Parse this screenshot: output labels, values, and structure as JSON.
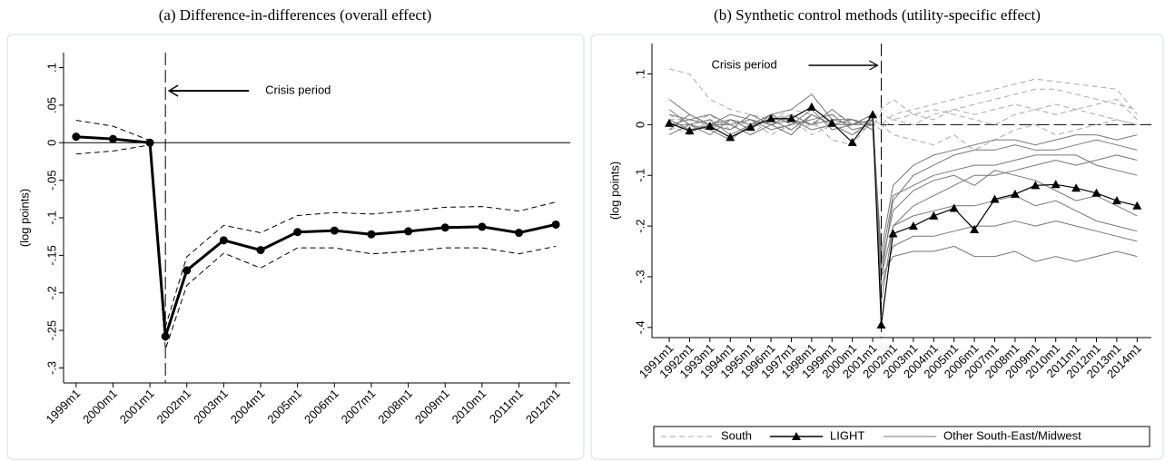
{
  "chart_data": [
    {
      "type": "line",
      "title": "(a) Difference-in-differences (overall effect)",
      "y_label": "(log points)",
      "annotation": "Crisis period",
      "crisis_x": 2001.42,
      "zero_line": "solid",
      "x": [
        1999,
        2000,
        2001,
        2001.42,
        2002,
        2003,
        2004,
        2005,
        2006,
        2007,
        2008,
        2009,
        2010,
        2011,
        2012
      ],
      "series": [
        {
          "color": "#000000",
          "style": "solid",
          "marker": "circle",
          "values": [
            0.008,
            0.005,
            0,
            -0.258,
            -0.17,
            -0.13,
            -0.143,
            -0.119,
            -0.117,
            -0.122,
            -0.118,
            -0.113,
            -0.112,
            -0.12,
            -0.109
          ]
        },
        {
          "color": "#000000",
          "style": "dashed",
          "values": [
            0.03,
            0.022,
            0.003,
            -0.245,
            -0.152,
            -0.11,
            -0.12,
            -0.097,
            -0.093,
            -0.095,
            -0.091,
            -0.086,
            -0.085,
            -0.091,
            -0.079
          ]
        },
        {
          "color": "#000000",
          "style": "dashed",
          "values": [
            -0.015,
            -0.011,
            -0.003,
            -0.275,
            -0.19,
            -0.147,
            -0.167,
            -0.14,
            -0.14,
            -0.148,
            -0.145,
            -0.14,
            -0.14,
            -0.148,
            -0.138
          ]
        }
      ],
      "xlim": [
        1998.66,
        2012.39
      ],
      "xticks": [
        {
          "value": 1999,
          "label": "1999m1"
        },
        {
          "value": 2000,
          "label": "2000m1"
        },
        {
          "value": 2001,
          "label": "2001m1"
        },
        {
          "value": 2002,
          "label": "2002m1"
        },
        {
          "value": 2003,
          "label": "2003m1"
        },
        {
          "value": 2004,
          "label": "2004m1"
        },
        {
          "value": 2005,
          "label": "2005m1"
        },
        {
          "value": 2006,
          "label": "2006m1"
        },
        {
          "value": 2007,
          "label": "2007m1"
        },
        {
          "value": 2008,
          "label": "2008m1"
        },
        {
          "value": 2009,
          "label": "2009m1"
        },
        {
          "value": 2010,
          "label": "2010m1"
        },
        {
          "value": 2011,
          "label": "2011m1"
        },
        {
          "value": 2012,
          "label": "2012m1"
        }
      ],
      "ylim": [
        -0.32,
        0.12
      ],
      "yticks": [
        {
          "value": 0.1,
          "label": ".1"
        },
        {
          "value": 0.05,
          "label": ".05"
        },
        0,
        {
          "value": -0.05,
          "label": "-.05"
        },
        {
          "value": -0.1,
          "label": "-.1"
        },
        {
          "value": -0.15,
          "label": "-.15"
        },
        {
          "value": -0.2,
          "label": "-.2"
        },
        {
          "value": -0.25,
          "label": "-.25"
        },
        {
          "value": -0.3,
          "label": "-.3"
        }
      ]
    },
    {
      "type": "line",
      "title": "(b) Synthetic control methods (utility-specific effect)",
      "y_label": "(log points)",
      "annotation": "Crisis period",
      "crisis_x": 2001.42,
      "zero_line": "dashed",
      "legend": "bottom",
      "x": [
        1991,
        1992,
        1993,
        1994,
        1995,
        1996,
        1997,
        1998,
        1999,
        2000,
        2001,
        2001.42,
        2002,
        2003,
        2004,
        2005,
        2006,
        2007,
        2008,
        2009,
        2010,
        2011,
        2012,
        2013,
        2014
      ],
      "series": [
        {
          "name": "South",
          "color": "#aaaaaa",
          "style": "dashed",
          "lines": [
            [
              0.11,
              0.1,
              0.05,
              0.03,
              0.02,
              0.01,
              0.02,
              0.0,
              -0.01,
              0.0,
              0.01,
              0.0,
              0.02,
              0.03,
              0.04,
              0.05,
              0.06,
              0.07,
              0.08,
              0.09,
              0.085,
              0.08,
              0.075,
              0.07,
              0.02
            ],
            [
              0.02,
              0.0,
              -0.01,
              0.01,
              0.0,
              0.02,
              0.01,
              -0.02,
              0.0,
              0.01,
              0.0,
              -0.01,
              0.01,
              0.0,
              0.02,
              0.03,
              0.04,
              0.05,
              0.06,
              0.07,
              0.07,
              0.06,
              0.05,
              0.04,
              0.03
            ],
            [
              -0.01,
              0.0,
              0.02,
              -0.01,
              0.01,
              -0.02,
              0.0,
              0.01,
              -0.03,
              -0.04,
              0.01,
              0.03,
              0.05,
              0.02,
              0.03,
              0.02,
              0.01,
              0.0,
              0.02,
              0.03,
              0.04,
              0.03,
              0.02,
              0.01,
              0.0
            ],
            [
              0.0,
              -0.02,
              0.01,
              0.0,
              -0.02,
              0.01,
              0.03,
              0.02,
              0.0,
              -0.02,
              0.0,
              0.0,
              -0.02,
              -0.03,
              -0.04,
              -0.02,
              -0.05,
              -0.03,
              -0.01,
              0.0,
              -0.02,
              -0.01,
              0.0,
              0.01,
              0.0
            ],
            [
              0.01,
              0.01,
              0.0,
              -0.01,
              0.02,
              0.0,
              -0.01,
              0.0,
              0.02,
              0.01,
              0.0,
              0.02,
              0.01,
              0.02,
              0.01,
              0.03,
              0.02,
              0.03,
              0.04,
              0.03,
              0.02,
              0.03,
              0.04,
              0.05,
              0.01
            ]
          ]
        },
        {
          "name": "LIGHT",
          "color": "#000000",
          "style": "solid",
          "marker": "triangle",
          "values": [
            0.003,
            -0.012,
            -0.003,
            -0.025,
            -0.005,
            0.012,
            0.012,
            0.035,
            0.003,
            -0.035,
            0.02,
            -0.395,
            -0.215,
            -0.2,
            -0.18,
            -0.165,
            -0.207,
            -0.147,
            -0.137,
            -0.12,
            -0.118,
            -0.125,
            -0.135,
            -0.15,
            -0.16
          ]
        },
        {
          "name": "Other South-East/Midwest",
          "color": "#777777",
          "style": "solid",
          "lines": [
            [
              0.05,
              0.02,
              0.0,
              0.01,
              -0.01,
              0.02,
              0.03,
              0.06,
              0.01,
              0.0,
              0.02,
              -0.3,
              -0.15,
              -0.1,
              -0.08,
              -0.06,
              -0.05,
              -0.05,
              -0.04,
              -0.05,
              -0.05,
              -0.04,
              -0.03,
              -0.04,
              -0.05
            ],
            [
              -0.02,
              0.0,
              -0.01,
              -0.03,
              0.0,
              0.01,
              -0.01,
              0.02,
              0.0,
              -0.02,
              0.01,
              -0.35,
              -0.2,
              -0.16,
              -0.14,
              -0.12,
              -0.1,
              -0.1,
              -0.09,
              -0.08,
              -0.07,
              -0.08,
              -0.07,
              -0.06,
              -0.07
            ],
            [
              0.0,
              0.01,
              0.02,
              0.0,
              -0.02,
              0.0,
              0.02,
              0.0,
              0.01,
              0.01,
              0.0,
              -0.25,
              -0.12,
              -0.08,
              -0.06,
              -0.05,
              -0.04,
              -0.03,
              -0.03,
              -0.04,
              -0.03,
              -0.02,
              -0.02,
              -0.03,
              -0.02
            ],
            [
              0.01,
              -0.01,
              0.0,
              0.02,
              0.01,
              -0.01,
              0.0,
              0.03,
              -0.01,
              0.0,
              0.01,
              -0.32,
              -0.24,
              -0.22,
              -0.22,
              -0.21,
              -0.2,
              -0.2,
              -0.19,
              -0.2,
              -0.19,
              -0.2,
              -0.21,
              -0.22,
              -0.23
            ],
            [
              0.03,
              0.0,
              0.01,
              -0.02,
              0.0,
              0.02,
              0.0,
              0.01,
              0.02,
              -0.01,
              0.0,
              -0.3,
              -0.26,
              -0.25,
              -0.25,
              -0.24,
              -0.26,
              -0.26,
              -0.25,
              -0.27,
              -0.26,
              -0.27,
              -0.26,
              -0.25,
              -0.26
            ],
            [
              -0.01,
              0.02,
              0.0,
              0.0,
              0.01,
              0.0,
              -0.02,
              0.02,
              0.0,
              0.01,
              -0.01,
              -0.28,
              -0.17,
              -0.13,
              -0.11,
              -0.1,
              -0.12,
              -0.09,
              -0.1,
              -0.11,
              -0.13,
              -0.15,
              -0.14,
              -0.16,
              -0.18
            ],
            [
              0.0,
              0.0,
              -0.02,
              0.01,
              0.0,
              0.01,
              0.01,
              0.0,
              0.03,
              0.0,
              0.02,
              -0.27,
              -0.14,
              -0.12,
              -0.1,
              -0.09,
              -0.08,
              -0.08,
              -0.07,
              -0.06,
              -0.06,
              -0.06,
              -0.08,
              -0.09,
              -0.1
            ],
            [
              0.02,
              0.01,
              0.0,
              -0.01,
              0.02,
              0.0,
              0.01,
              -0.01,
              0.0,
              0.0,
              0.0,
              -0.3,
              -0.2,
              -0.18,
              -0.17,
              -0.16,
              -0.16,
              -0.15,
              -0.14,
              -0.16,
              -0.15,
              -0.17,
              -0.19,
              -0.2,
              -0.21
            ]
          ]
        }
      ],
      "xlim": [
        1990.15,
        2014.7
      ],
      "xticks": [
        {
          "value": 1991,
          "label": "1991m1"
        },
        {
          "value": 1992,
          "label": "1992m1"
        },
        {
          "value": 1993,
          "label": "1993m1"
        },
        {
          "value": 1994,
          "label": "1994m1"
        },
        {
          "value": 1995,
          "label": "1995m1"
        },
        {
          "value": 1996,
          "label": "1996m1"
        },
        {
          "value": 1997,
          "label": "1997m1"
        },
        {
          "value": 1998,
          "label": "1998m1"
        },
        {
          "value": 1999,
          "label": "1999m1"
        },
        {
          "value": 2000,
          "label": "2000m1"
        },
        {
          "value": 2001,
          "label": "2001m1"
        },
        {
          "value": 2002,
          "label": "2002m1"
        },
        {
          "value": 2003,
          "label": "2003m1"
        },
        {
          "value": 2004,
          "label": "2004m1"
        },
        {
          "value": 2005,
          "label": "2005m1"
        },
        {
          "value": 2006,
          "label": "2006m1"
        },
        {
          "value": 2007,
          "label": "2007m1"
        },
        {
          "value": 2008,
          "label": "2008m1"
        },
        {
          "value": 2009,
          "label": "2009m1"
        },
        {
          "value": 2010,
          "label": "2010m1"
        },
        {
          "value": 2011,
          "label": "2011m1"
        },
        {
          "value": 2012,
          "label": "2012m1"
        },
        {
          "value": 2013,
          "label": "2013m1"
        },
        {
          "value": 2014,
          "label": "2014m1"
        }
      ],
      "ylim": [
        -0.42,
        0.16
      ],
      "yticks": [
        {
          "value": 0.1,
          "label": ".1"
        },
        0,
        {
          "value": -0.1,
          "label": "-.1"
        },
        {
          "value": -0.2,
          "label": "-.2"
        },
        {
          "value": -0.3,
          "label": "-.3"
        },
        {
          "value": -0.4,
          "label": "-.4"
        }
      ]
    }
  ]
}
